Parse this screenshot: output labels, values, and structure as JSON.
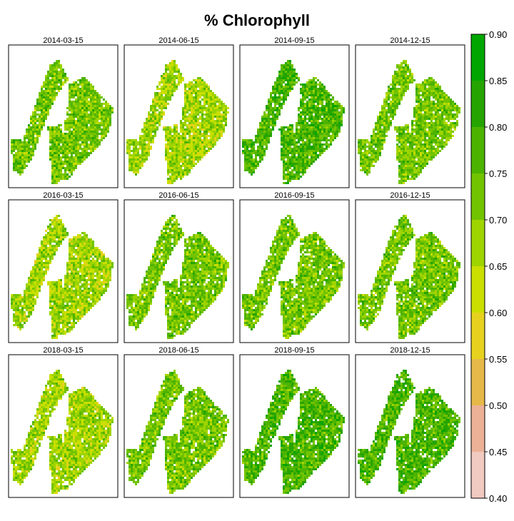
{
  "chart_data": {
    "type": "heatmap",
    "title": "% Chlorophyll",
    "panels": [
      {
        "date": "2014-03-15",
        "dominant_class": "0.70-0.75"
      },
      {
        "date": "2014-06-15",
        "dominant_class": "0.65-0.70"
      },
      {
        "date": "2014-09-15",
        "dominant_class": "0.75-0.80"
      },
      {
        "date": "2014-12-15",
        "dominant_class": "0.70-0.75"
      },
      {
        "date": "2016-03-15",
        "dominant_class": "0.65-0.70"
      },
      {
        "date": "2016-06-15",
        "dominant_class": "0.70-0.75"
      },
      {
        "date": "2016-09-15",
        "dominant_class": "0.70-0.75"
      },
      {
        "date": "2016-12-15",
        "dominant_class": "0.70-0.75"
      },
      {
        "date": "2018-03-15",
        "dominant_class": "0.65-0.70"
      },
      {
        "date": "2018-06-15",
        "dominant_class": "0.70-0.75"
      },
      {
        "date": "2018-09-15",
        "dominant_class": "0.75-0.80"
      },
      {
        "date": "2018-12-15",
        "dominant_class": "0.75-0.80"
      }
    ],
    "legend": {
      "placement": "right",
      "range": [
        0.4,
        0.9
      ],
      "ticks": [
        "0.40",
        "0.45",
        "0.50",
        "0.55",
        "0.60",
        "0.65",
        "0.70",
        "0.75",
        "0.80",
        "0.85",
        "0.90"
      ],
      "colors": [
        "#f2f2f2",
        "#f0c9c0",
        "#ebb196",
        "#e6b84a",
        "#e6d21e",
        "#cadf00",
        "#9ed400",
        "#72c300",
        "#4cb300",
        "#25a400",
        "#00a600"
      ]
    }
  }
}
